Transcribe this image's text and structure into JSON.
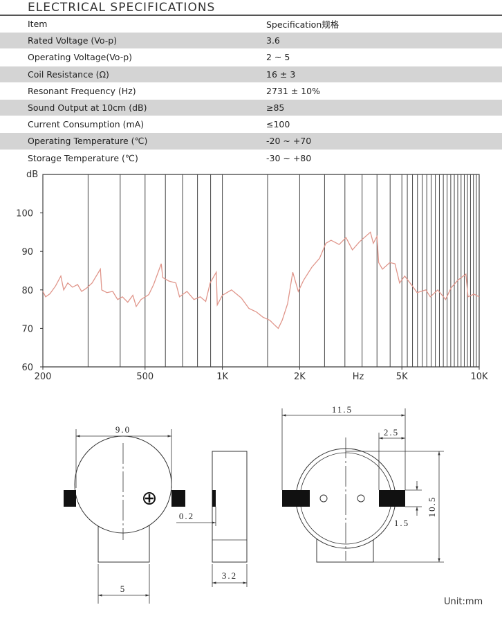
{
  "header": {
    "title": "ELECTRICAL SPECIFICATIONS"
  },
  "table": {
    "columns": [
      "Item",
      "Specification规格"
    ],
    "rows": [
      [
        "Rated Voltage (Vo-p)",
        "3.6"
      ],
      [
        "Operating Voltage(Vo-p)",
        "2 ~ 5"
      ],
      [
        "Coil Resistance (Ω)",
        "16 ± 3"
      ],
      [
        "Resonant Frequency (Hz)",
        "2731 ± 10%"
      ],
      [
        "Sound Output at 10cm (dB)",
        "≥85"
      ],
      [
        "Current Consumption (mA)",
        "≤100"
      ],
      [
        "Operating Temperature (℃)",
        "-20 ~ +70"
      ],
      [
        "Storage Temperature (℃)",
        "-30 ~ +80"
      ]
    ]
  },
  "chart_data": {
    "type": "line",
    "y_label": "dB",
    "x_label": "Hz",
    "color": "#e0958a",
    "log_x": true,
    "xlim": [
      200,
      10000
    ],
    "ylim": [
      60,
      110
    ],
    "xticks": [
      200,
      500,
      {
        "value": 1000,
        "label": "1K"
      },
      {
        "value": 2000,
        "label": "2K"
      },
      {
        "value": 5000,
        "label": "5K"
      },
      {
        "value": 10000,
        "label": "10K"
      }
    ],
    "yticks": [
      60,
      70,
      80,
      90,
      100
    ],
    "xgrid": [
      200,
      300,
      400,
      500,
      600,
      700,
      800,
      900,
      1000,
      1500,
      2000,
      2500,
      3000,
      3500,
      4000,
      4500,
      5000,
      5250,
      5500,
      5750,
      6000,
      6250,
      6500,
      6750,
      7000,
      7250,
      7500,
      7750,
      8000,
      8250,
      8500,
      8750,
      9000,
      9250,
      9500,
      9750,
      10000
    ],
    "x": [
      200,
      205,
      213,
      224,
      235,
      241,
      250,
      261,
      273,
      283,
      295,
      311,
      335,
      339,
      355,
      374,
      391,
      408,
      428,
      448,
      462,
      482,
      517,
      540,
      578,
      586,
      619,
      659,
      681,
      728,
      775,
      820,
      861,
      896,
      947,
      955,
      1000,
      1085,
      1185,
      1268,
      1355,
      1440,
      1530,
      1590,
      1650,
      1710,
      1794,
      1880,
      1975,
      2070,
      2230,
      2390,
      2530,
      2650,
      2850,
      3030,
      3210,
      3420,
      3770,
      3870,
      4000,
      4060,
      4200,
      4490,
      4700,
      4900,
      5130,
      5480,
      5730,
      6200,
      6450,
      6900,
      7400,
      7770,
      8250,
      8880,
      9050,
      9540,
      10000
    ],
    "values": [
      79.6,
      78.2,
      79,
      81,
      83.6,
      80,
      81.8,
      80.7,
      81.4,
      79.6,
      80.4,
      81.8,
      85.4,
      80,
      79.3,
      79.6,
      77.5,
      78.2,
      76.8,
      78.6,
      75.7,
      77.5,
      78.8,
      81.4,
      86.8,
      83.2,
      82.3,
      81.8,
      78.2,
      79.6,
      77.5,
      78.2,
      77,
      81.8,
      84.6,
      76.1,
      78.6,
      80,
      77.9,
      75.2,
      74.3,
      72.9,
      72.1,
      71,
      70,
      72.1,
      76.4,
      84.6,
      79.6,
      82.5,
      85.9,
      88.2,
      92.1,
      92.9,
      91.8,
      93.6,
      90.4,
      92.5,
      95,
      92.1,
      93.9,
      87.1,
      85.4,
      87.1,
      86.8,
      81.8,
      83.6,
      81.1,
      79.3,
      80,
      78.2,
      80,
      77.5,
      80.5,
      82.5,
      84.1,
      78.2,
      78.9,
      78.2
    ]
  },
  "drawing": {
    "dimensions": {
      "front_width": "9.0",
      "pad_gap": "0.2",
      "tab_width": "5",
      "thickness": "3.2",
      "back_width": "11.5",
      "pad_length": "2.5",
      "height": "10.5",
      "pad_height": "1.5"
    },
    "unit": "Unit:mm"
  }
}
